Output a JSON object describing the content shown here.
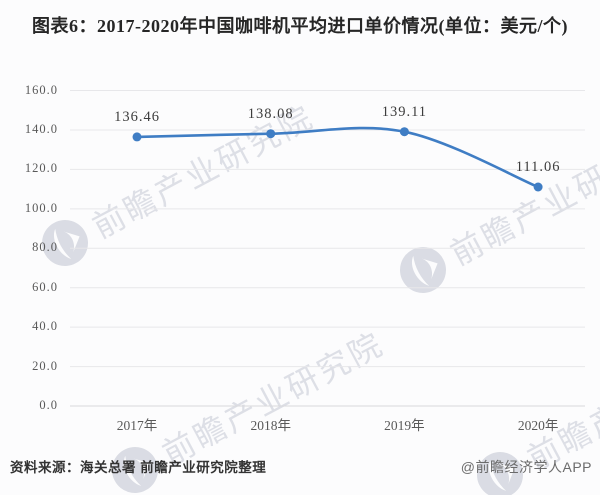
{
  "title": "图表6：2017-2020年中国咖啡机平均进口单价情况(单位：美元/个)",
  "watermark": {
    "text": "前瞻产业研究院"
  },
  "footer": {
    "source": "资料来源：海关总署 前瞻产业研究院整理",
    "app": "@前瞻经济学人APP"
  },
  "colors": {
    "line": "#3f7dc4",
    "grid": "#e7e7ea",
    "axis": "#d9d9dc",
    "watermark": "#b2b7c6"
  },
  "chart_data": {
    "type": "line",
    "title": "图表6：2017-2020年中国咖啡机平均进口单价情况(单位：美元/个)",
    "categories": [
      "2017年",
      "2018年",
      "2019年",
      "2020年"
    ],
    "values": [
      136.46,
      138.08,
      139.11,
      111.06
    ],
    "data_labels": [
      "136.46",
      "138.08",
      "139.11",
      "111.06"
    ],
    "xlabel": "",
    "ylabel": "",
    "ylim": [
      0,
      160
    ],
    "y_tick_step": 20,
    "y_tick_labels": [
      "0.0",
      "20.0",
      "40.0",
      "60.0",
      "80.0",
      "100.0",
      "120.0",
      "140.0",
      "160.0"
    ],
    "grid": true,
    "legend": "none",
    "smooth": true
  }
}
